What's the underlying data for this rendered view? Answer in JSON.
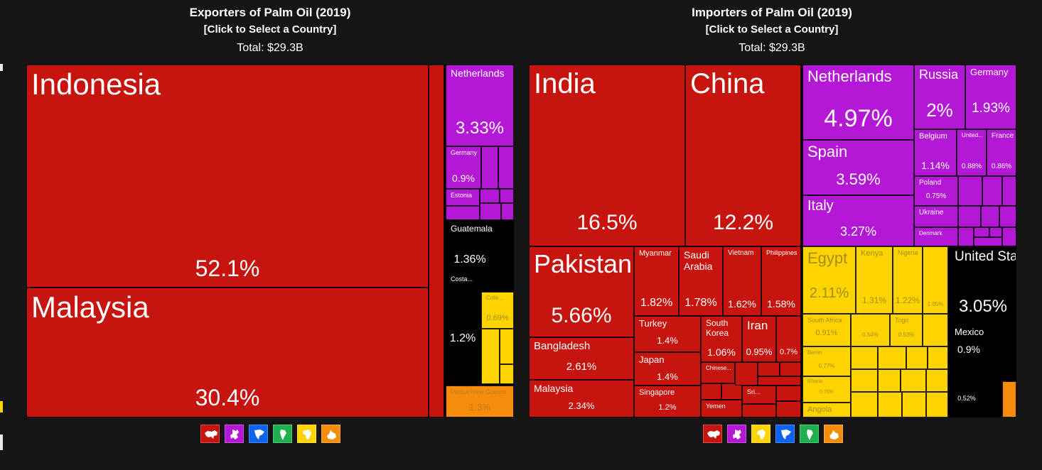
{
  "left_panel": {
    "title": "Exporters of Palm Oil (2019)",
    "subtitle": "[Click to Select a Country]",
    "total": "Total: $29.3B"
  },
  "right_panel": {
    "title": "Importers of Palm Oil (2019)",
    "subtitle": "[Click to Select a Country]",
    "total": "Total: $29.3B"
  },
  "colors": {
    "asia": "#c8140f",
    "europe": "#b417d6",
    "north_america": "#0d64f0",
    "south_america": "#1fb14f",
    "africa": "#fdd300",
    "oceania": "#f58c0b"
  },
  "left_icons": [
    "asia-continent-icon",
    "europe-continent-icon",
    "north-america-continent-icon",
    "south-america-continent-icon",
    "africa-continent-icon",
    "oceania-continent-icon"
  ],
  "right_icons": [
    "asia-continent-icon",
    "europe-continent-icon",
    "africa-continent-icon",
    "north-america-continent-icon",
    "south-america-continent-icon",
    "oceania-continent-icon"
  ],
  "chart_data": [
    {
      "type": "treemap",
      "title": "Exporters of Palm Oil (2019)",
      "total": "$29.3B",
      "items": [
        {
          "label": "Indonesia",
          "value": 52.1,
          "pct": "52.1%",
          "group": "asia"
        },
        {
          "label": "Malaysia",
          "value": 30.4,
          "pct": "30.4%",
          "group": "asia"
        },
        {
          "label": "Netherlands",
          "value": 3.33,
          "pct": "3.33%",
          "group": "europe"
        },
        {
          "label": "Germany",
          "value": 0.9,
          "pct": "0.9%",
          "group": "europe"
        },
        {
          "label": "Estonia",
          "value": null,
          "pct": "",
          "group": "europe"
        },
        {
          "label": "Guatemala",
          "value": 1.36,
          "pct": "1.36%",
          "group": "north_america"
        },
        {
          "label": "Costa...",
          "value": null,
          "pct": "",
          "group": "north_america"
        },
        {
          "label": "",
          "value": 1.2,
          "pct": "1.2%",
          "group": "south_america"
        },
        {
          "label": "Cote...",
          "value": 0.69,
          "pct": "0.69%",
          "group": "africa"
        },
        {
          "label": "Papua New Guinea",
          "value": 1.3,
          "pct": "1.3%",
          "group": "oceania"
        }
      ]
    },
    {
      "type": "treemap",
      "title": "Importers of Palm Oil (2019)",
      "total": "$29.3B",
      "items": [
        {
          "label": "India",
          "value": 16.5,
          "pct": "16.5%",
          "group": "asia"
        },
        {
          "label": "China",
          "value": 12.2,
          "pct": "12.2%",
          "group": "asia"
        },
        {
          "label": "Pakistan",
          "value": 5.66,
          "pct": "5.66%",
          "group": "asia"
        },
        {
          "label": "Bangladesh",
          "value": 2.61,
          "pct": "2.61%",
          "group": "asia"
        },
        {
          "label": "Malaysia",
          "value": 2.34,
          "pct": "2.34%",
          "group": "asia"
        },
        {
          "label": "Myanmar",
          "value": 1.82,
          "pct": "1.82%",
          "group": "asia"
        },
        {
          "label": "Saudi Arabia",
          "value": 1.78,
          "pct": "1.78%",
          "group": "asia"
        },
        {
          "label": "Vietnam",
          "value": 1.62,
          "pct": "1.62%",
          "group": "asia"
        },
        {
          "label": "Philippines",
          "value": 1.58,
          "pct": "1.58%",
          "group": "asia"
        },
        {
          "label": "Turkey",
          "value": 1.4,
          "pct": "1.4%",
          "group": "asia"
        },
        {
          "label": "Japan",
          "value": 1.4,
          "pct": "1.4%",
          "group": "asia"
        },
        {
          "label": "Singapore",
          "value": 1.2,
          "pct": "1.2%",
          "group": "asia"
        },
        {
          "label": "South Korea",
          "value": 1.06,
          "pct": "1.06%",
          "group": "asia"
        },
        {
          "label": "Iran",
          "value": 0.95,
          "pct": "0.95%",
          "group": "asia"
        },
        {
          "label": "",
          "value": 0.7,
          "pct": "0.7%",
          "group": "asia"
        },
        {
          "label": "Chinese...",
          "value": null,
          "pct": "",
          "group": "asia"
        },
        {
          "label": "Sri...",
          "value": null,
          "pct": "",
          "group": "asia"
        },
        {
          "label": "Yemen",
          "value": null,
          "pct": "",
          "group": "asia"
        },
        {
          "label": "Netherlands",
          "value": 4.97,
          "pct": "4.97%",
          "group": "europe"
        },
        {
          "label": "Russia",
          "value": 2.0,
          "pct": "2%",
          "group": "europe"
        },
        {
          "label": "Germany",
          "value": 1.93,
          "pct": "1.93%",
          "group": "europe"
        },
        {
          "label": "Spain",
          "value": 3.59,
          "pct": "3.59%",
          "group": "europe"
        },
        {
          "label": "Italy",
          "value": 3.27,
          "pct": "3.27%",
          "group": "europe"
        },
        {
          "label": "Belgium",
          "value": 1.14,
          "pct": "1.14%",
          "group": "europe"
        },
        {
          "label": "United...",
          "value": 0.88,
          "pct": "0.88%",
          "group": "europe"
        },
        {
          "label": "France",
          "value": 0.86,
          "pct": "0.86%",
          "group": "europe"
        },
        {
          "label": "Poland",
          "value": 0.75,
          "pct": "0.75%",
          "group": "europe"
        },
        {
          "label": "Ukraine",
          "value": null,
          "pct": "",
          "group": "europe"
        },
        {
          "label": "Denmark",
          "value": null,
          "pct": "",
          "group": "europe"
        },
        {
          "label": "Egypt",
          "value": 2.11,
          "pct": "2.11%",
          "group": "africa"
        },
        {
          "label": "Kenya",
          "value": 1.31,
          "pct": "1.31%",
          "group": "africa"
        },
        {
          "label": "Nigeria",
          "value": 1.22,
          "pct": "1.22%",
          "group": "africa"
        },
        {
          "label": "",
          "value": 1.05,
          "pct": "1.05%",
          "group": "africa"
        },
        {
          "label": "South Africa",
          "value": 0.91,
          "pct": "0.91%",
          "group": "africa"
        },
        {
          "label": "",
          "value": 0.54,
          "pct": "0.54%",
          "group": "africa"
        },
        {
          "label": "Togo",
          "value": 0.53,
          "pct": "0.53%",
          "group": "africa"
        },
        {
          "label": "Benin",
          "value": 0.77,
          "pct": "0.77%",
          "group": "africa"
        },
        {
          "label": "Ghana",
          "value": 0.75,
          "pct": "0.75%",
          "group": "africa"
        },
        {
          "label": "Angola",
          "value": null,
          "pct": "",
          "group": "africa"
        },
        {
          "label": "United States",
          "value": 3.05,
          "pct": "3.05%",
          "group": "north_america"
        },
        {
          "label": "Mexico",
          "value": 0.9,
          "pct": "0.9%",
          "group": "north_america"
        },
        {
          "label": "",
          "value": 0.52,
          "pct": "0.52%",
          "group": "south_america"
        }
      ]
    }
  ]
}
